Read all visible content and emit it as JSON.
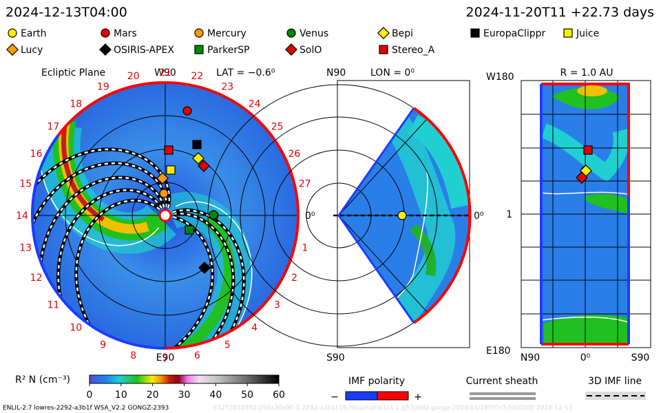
{
  "header": {
    "left": "2024-12-13T04:00",
    "right": "2024-11-20T11 +22.73 days"
  },
  "legend": [
    {
      "name": "Earth",
      "shape": "circle",
      "color": "#ffee00"
    },
    {
      "name": "Mars",
      "shape": "circle",
      "color": "#e00000"
    },
    {
      "name": "Mercury",
      "shape": "circle",
      "color": "#ff9900"
    },
    {
      "name": "Venus",
      "shape": "circle",
      "color": "#008800"
    },
    {
      "name": "Bepi",
      "shape": "diamond",
      "color": "#ffee00"
    },
    {
      "name": "EuropaClippr",
      "shape": "square",
      "color": "#000000"
    },
    {
      "name": "Juice",
      "shape": "square",
      "color": "#ffee00"
    },
    {
      "name": "Lucy",
      "shape": "diamond",
      "color": "#ff9900"
    },
    {
      "name": "OSIRIS-APEX",
      "shape": "diamond",
      "color": "#000000"
    },
    {
      "name": "ParkerSP",
      "shape": "square",
      "color": "#008800"
    },
    {
      "name": "SolO",
      "shape": "diamond",
      "color": "#e00000"
    },
    {
      "name": "Stereo_A",
      "shape": "square",
      "color": "#e00000"
    }
  ],
  "ecliptic_panel": {
    "title": "Ecliptic Plane",
    "top_label": "W90",
    "lat": "LAT = −0.6⁰",
    "right_label": "0⁰",
    "bottom_label": "E90",
    "longitude_labels": [
      1,
      2,
      3,
      4,
      5,
      6,
      7,
      8,
      9,
      10,
      11,
      12,
      13,
      14,
      15,
      16,
      17,
      18,
      19,
      20,
      21,
      22,
      23,
      24,
      25,
      26,
      27
    ]
  },
  "meridian_panel": {
    "top_label": "N90",
    "lon": "LON = 0⁰",
    "right_label": "0⁰",
    "bottom_label": "S90"
  },
  "radius_panel": {
    "top_left": "W180",
    "title": "R = 1.0 AU",
    "mid_left": "1",
    "bottom_left": "E180",
    "bottom_labels": [
      "N90",
      "0⁰",
      "S90"
    ]
  },
  "colorbar": {
    "label": "R² N (cm⁻³)",
    "ticks": [
      0,
      10,
      20,
      30,
      40,
      50,
      60
    ]
  },
  "key": {
    "imf_title": "IMF polarity",
    "minus": "−",
    "plus": "+",
    "sheath": "Current sheath",
    "imf_line": "3D IMF line"
  },
  "footer": {
    "model": "ENLIL-2.7 lowres-2292-a3b1f WSA_V2.2 GONGZ-2393",
    "run": "E12T3034502/256x30x90-1.2292-a3b1f.16-hbcp/tume1cs-1.g53gdd2.gongz-2024/11/19T07c57d00100   2024-12-13"
  }
}
